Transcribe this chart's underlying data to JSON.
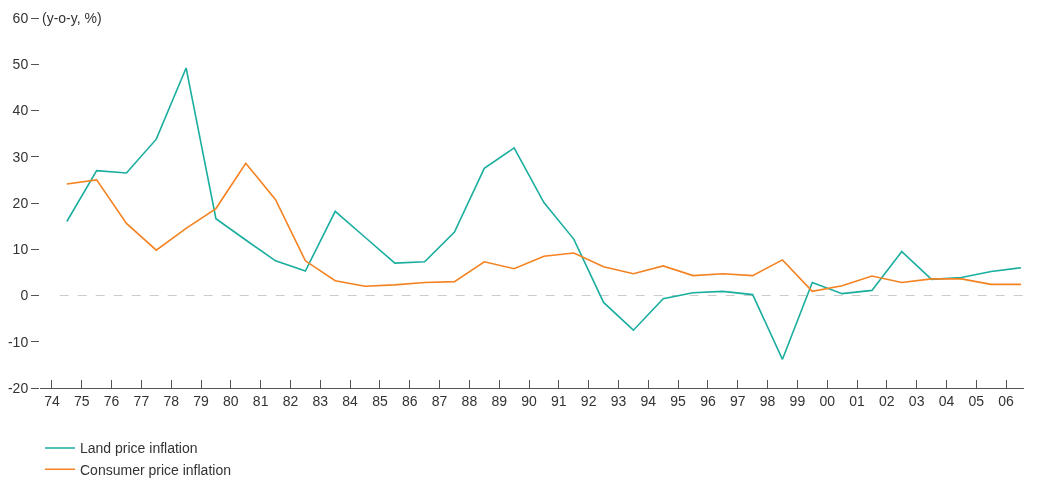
{
  "chart_data": {
    "type": "line",
    "ylabel": "(y-o-y, %)",
    "x": [
      1974.5,
      1975.5,
      1976.5,
      1977.5,
      1978.5,
      1979.5,
      1980.5,
      1981.5,
      1982.5,
      1983.5,
      1984.5,
      1985.5,
      1986.5,
      1987.5,
      1988.5,
      1989.5,
      1990.5,
      1991.5,
      1992.5,
      1993.5,
      1994.5,
      1995.5,
      1996.5,
      1997.5,
      1998.5,
      1999.5,
      2000.5,
      2001.5,
      2002.5,
      2003.5,
      2004.5,
      2005.5,
      2006.5
    ],
    "series": [
      {
        "name": "Land price inflation",
        "color": "#1aae9f",
        "values": [
          16,
          27,
          26.5,
          33.8,
          49.2,
          16.6,
          12,
          7.5,
          5.3,
          18.2,
          12.6,
          7,
          7.3,
          13.7,
          27.5,
          31.9,
          20.1,
          12.2,
          -1.5,
          -7.5,
          -0.7,
          0.6,
          0.9,
          0.2,
          -13.8,
          2.8,
          0.4,
          1.1,
          9.5,
          3.5,
          3.9,
          5.2,
          6
        ]
      },
      {
        "name": "Consumer price inflation",
        "color": "#f58220",
        "values": [
          24.1,
          25,
          15.6,
          9.8,
          14.5,
          18.8,
          28.6,
          20.7,
          7.5,
          3.2,
          2,
          2.3,
          2.8,
          3,
          7.3,
          5.8,
          8.5,
          9.2,
          6.2,
          4.7,
          6.4,
          4.3,
          4.7,
          4.3,
          7.7,
          0.9,
          2.1,
          4.2,
          2.8,
          3.6,
          3.6,
          2.4,
          2.4
        ]
      }
    ],
    "xlim": [
      1973.6,
      2006.6
    ],
    "xticks": [
      {
        "value": 1974,
        "label": "74"
      },
      {
        "value": 1975,
        "label": "75"
      },
      {
        "value": 1976,
        "label": "76"
      },
      {
        "value": 1977,
        "label": "77"
      },
      {
        "value": 1978,
        "label": "78"
      },
      {
        "value": 1979,
        "label": "79"
      },
      {
        "value": 1980,
        "label": "80"
      },
      {
        "value": 1981,
        "label": "81"
      },
      {
        "value": 1982,
        "label": "82"
      },
      {
        "value": 1983,
        "label": "83"
      },
      {
        "value": 1984,
        "label": "84"
      },
      {
        "value": 1985,
        "label": "85"
      },
      {
        "value": 1986,
        "label": "86"
      },
      {
        "value": 1987,
        "label": "87"
      },
      {
        "value": 1988,
        "label": "88"
      },
      {
        "value": 1989,
        "label": "89"
      },
      {
        "value": 1990,
        "label": "90"
      },
      {
        "value": 1991,
        "label": "91"
      },
      {
        "value": 1992,
        "label": "92"
      },
      {
        "value": 1993,
        "label": "93"
      },
      {
        "value": 1994,
        "label": "94"
      },
      {
        "value": 1995,
        "label": "95"
      },
      {
        "value": 1996,
        "label": "96"
      },
      {
        "value": 1997,
        "label": "97"
      },
      {
        "value": 1998,
        "label": "98"
      },
      {
        "value": 1999,
        "label": "99"
      },
      {
        "value": 2000,
        "label": "00"
      },
      {
        "value": 2001,
        "label": "01"
      },
      {
        "value": 2002,
        "label": "02"
      },
      {
        "value": 2003,
        "label": "03"
      },
      {
        "value": 2004,
        "label": "04"
      },
      {
        "value": 2005,
        "label": "05"
      },
      {
        "value": 2006,
        "label": "06"
      }
    ],
    "ylim": [
      -20,
      60
    ],
    "yticks": [
      -20,
      -10,
      0,
      10,
      20,
      30,
      40,
      50,
      60
    ],
    "ref_lines": [
      {
        "axis": "y",
        "value": 0,
        "color": "#cccccc",
        "line_style": "dashed"
      }
    ],
    "grid": false,
    "legend": "bottom",
    "marker": "none",
    "line_style": "solid"
  }
}
